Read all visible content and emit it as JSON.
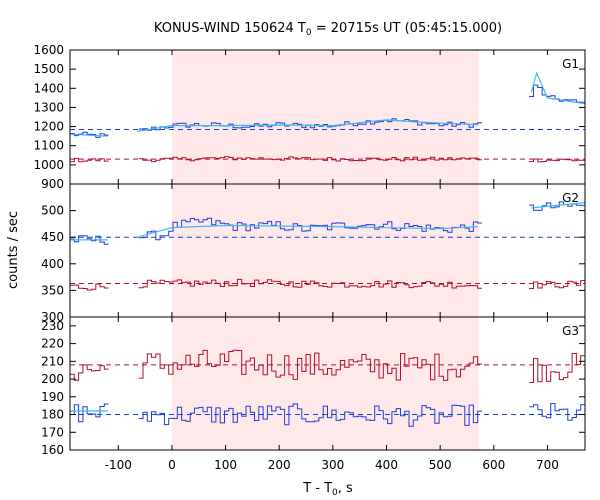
{
  "chart_data": {
    "type": "line",
    "title": {
      "prefix": "KONUS-WIND 150624 T",
      "sub": "0",
      "suffix": " = 20715s UT (05:45:15.000)"
    },
    "xlabel": {
      "prefix": "T - T",
      "sub": "0",
      "suffix": ", s"
    },
    "ylabel": "counts / sec",
    "xlim": [
      -190,
      770
    ],
    "xticks": [
      -100,
      0,
      100,
      200,
      300,
      400,
      500,
      600,
      700
    ],
    "shaded_interval": {
      "from": 0,
      "to": 572,
      "color": "#ffe8ea"
    },
    "grid": false,
    "data_gaps": [
      [
        -117,
        -65
      ],
      [
        575,
        668
      ]
    ],
    "panels": [
      {
        "label": "G1",
        "ylim": [
          900,
          1600
        ],
        "yticks": [
          900,
          1000,
          1100,
          1200,
          1300,
          1400,
          1500,
          1600
        ],
        "series": [
          {
            "color": "#1d3fd6",
            "baseline": 1185,
            "step": 8,
            "points": [
              [
                -190,
                1160
              ],
              [
                -120,
                1150
              ],
              [
                -65,
                1175
              ],
              [
                -20,
                1195
              ],
              [
                0,
                1205
              ],
              [
                50,
                1210
              ],
              [
                100,
                1205
              ],
              [
                150,
                1200
              ],
              [
                200,
                1210
              ],
              [
                250,
                1205
              ],
              [
                300,
                1205
              ],
              [
                350,
                1220
              ],
              [
                400,
                1235
              ],
              [
                450,
                1225
              ],
              [
                500,
                1210
              ],
              [
                570,
                1210
              ],
              [
                670,
                1360
              ],
              [
                680,
                1420
              ],
              [
                700,
                1350
              ],
              [
                730,
                1340
              ],
              [
                770,
                1320
              ]
            ],
            "noise": 14
          },
          {
            "color": "#b0102a",
            "baseline": 1030,
            "step": 8,
            "points": [
              [
                -190,
                1025
              ],
              [
                -120,
                1025
              ],
              [
                -65,
                1025
              ],
              [
                100,
                1035
              ],
              [
                300,
                1030
              ],
              [
                500,
                1030
              ],
              [
                570,
                1032
              ],
              [
                670,
                1025
              ],
              [
                770,
                1025
              ]
            ],
            "noise": 10
          }
        ],
        "model_lines": [
          {
            "color": "#40b8f0",
            "points": [
              [
                -190,
                1160
              ],
              [
                -120,
                1150
              ],
              [
                -65,
                1175
              ],
              [
                0,
                1205
              ],
              [
                100,
                1205
              ],
              [
                200,
                1208
              ],
              [
                300,
                1205
              ],
              [
                400,
                1235
              ],
              [
                450,
                1225
              ],
              [
                570,
                1210
              ],
              [
                670,
                1380
              ],
              [
                680,
                1480
              ],
              [
                700,
                1350
              ],
              [
                770,
                1320
              ]
            ]
          }
        ]
      },
      {
        "label": "G2",
        "ylim": [
          300,
          550
        ],
        "yticks": [
          300,
          350,
          400,
          450,
          500
        ],
        "series": [
          {
            "color": "#1d3fd6",
            "baseline": 450,
            "step": 8,
            "points": [
              [
                -190,
                445
              ],
              [
                -120,
                445
              ],
              [
                -65,
                450
              ],
              [
                -10,
                455
              ],
              [
                0,
                470
              ],
              [
                60,
                480
              ],
              [
                120,
                470
              ],
              [
                200,
                472
              ],
              [
                250,
                465
              ],
              [
                300,
                470
              ],
              [
                350,
                475
              ],
              [
                400,
                472
              ],
              [
                450,
                470
              ],
              [
                500,
                465
              ],
              [
                570,
                470
              ],
              [
                670,
                505
              ],
              [
                770,
                510
              ]
            ],
            "noise": 9
          },
          {
            "color": "#b0102a",
            "baseline": 363,
            "step": 8,
            "points": [
              [
                -190,
                357
              ],
              [
                -120,
                357
              ],
              [
                -65,
                362
              ],
              [
                100,
                364
              ],
              [
                300,
                362
              ],
              [
                500,
                362
              ],
              [
                570,
                360
              ],
              [
                670,
                360
              ],
              [
                770,
                362
              ]
            ],
            "noise": 7
          }
        ],
        "model_lines": [
          {
            "color": "#40b8f0",
            "points": [
              [
                -190,
                445
              ],
              [
                -120,
                445
              ],
              [
                -65,
                450
              ],
              [
                0,
                468
              ],
              [
                100,
                472
              ],
              [
                300,
                470
              ],
              [
                500,
                466
              ],
              [
                570,
                470
              ],
              [
                670,
                505
              ],
              [
                770,
                515
              ]
            ]
          }
        ]
      },
      {
        "label": "G3",
        "ylim": [
          160,
          235
        ],
        "yticks": [
          160,
          170,
          180,
          190,
          200,
          210,
          220,
          230
        ],
        "series": [
          {
            "color": "#b0102a",
            "baseline": 208,
            "step": 8,
            "points": [
              [
                -190,
                206
              ],
              [
                -120,
                205
              ],
              [
                -65,
                208
              ],
              [
                100,
                209
              ],
              [
                300,
                207
              ],
              [
                500,
                207
              ],
              [
                570,
                208
              ],
              [
                670,
                206
              ],
              [
                770,
                207
              ]
            ],
            "noise": 8
          },
          {
            "color": "#1d3fd6",
            "baseline": 180,
            "step": 8,
            "points": [
              [
                -190,
                181
              ],
              [
                -120,
                181
              ],
              [
                -65,
                180
              ],
              [
                100,
                180
              ],
              [
                300,
                180
              ],
              [
                500,
                179
              ],
              [
                570,
                180
              ],
              [
                670,
                181
              ],
              [
                770,
                180
              ]
            ],
            "noise": 6
          }
        ],
        "model_lines": [
          {
            "color": "#40b8f0",
            "points": [
              [
                -190,
                182
              ],
              [
                -120,
                182
              ]
            ]
          }
        ]
      }
    ]
  }
}
